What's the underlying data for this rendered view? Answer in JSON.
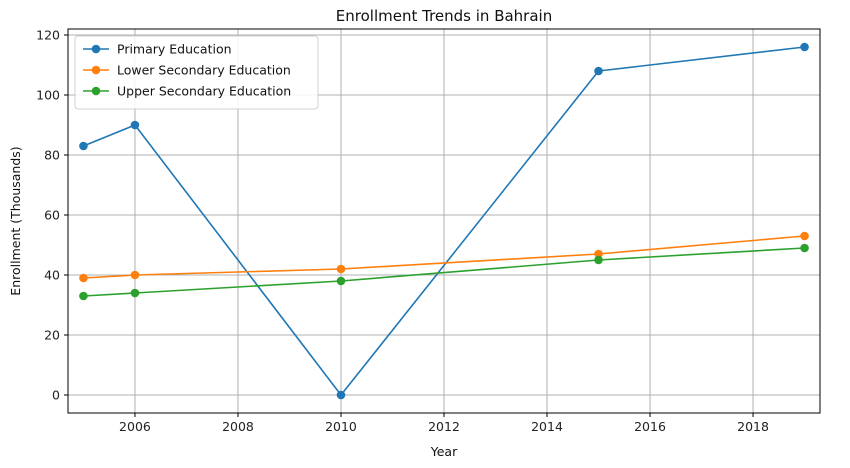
{
  "chart_data": {
    "type": "line",
    "title": "Enrollment Trends in Bahrain",
    "xlabel": "Year",
    "ylabel": "Enrollment (Thousands)",
    "xlim": [
      2004.7,
      2019.3
    ],
    "ylim": [
      -6,
      122
    ],
    "xticks": [
      2006,
      2008,
      2010,
      2012,
      2014,
      2016,
      2018
    ],
    "yticks": [
      0,
      20,
      40,
      60,
      80,
      100,
      120
    ],
    "grid": true,
    "legend_position": "top-left",
    "series": [
      {
        "name": "Primary Education",
        "color": "#1f77b4",
        "marker": "circle",
        "points": [
          [
            2005,
            83
          ],
          [
            2006,
            90
          ],
          [
            2010,
            0
          ],
          [
            2015,
            108
          ],
          [
            2019,
            116
          ]
        ]
      },
      {
        "name": "Lower Secondary Education",
        "color": "#ff7f0e",
        "marker": "circle",
        "points": [
          [
            2005,
            39
          ],
          [
            2006,
            40
          ],
          [
            2010,
            42
          ],
          [
            2015,
            47
          ],
          [
            2019,
            53
          ]
        ]
      },
      {
        "name": "Upper Secondary Education",
        "color": "#2ca02c",
        "marker": "circle",
        "points": [
          [
            2005,
            33
          ],
          [
            2006,
            34
          ],
          [
            2010,
            38
          ],
          [
            2015,
            45
          ],
          [
            2019,
            49
          ]
        ]
      }
    ]
  }
}
